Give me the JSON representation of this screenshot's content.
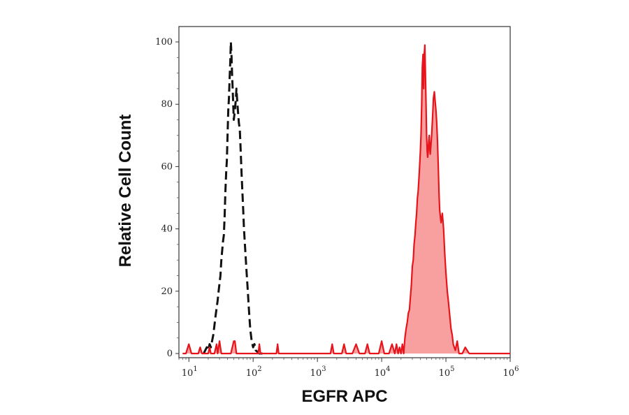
{
  "chart_data": {
    "type": "area",
    "title": "",
    "xlabel": "EGFR APC",
    "ylabel": "Relative Cell Count",
    "x_scale": "log",
    "xlim": [
      7,
      1000000
    ],
    "ylim": [
      0,
      100
    ],
    "grid": false,
    "legend": "none",
    "x_ticks": [
      {
        "base": "10",
        "exp": "1",
        "value": 10
      },
      {
        "base": "10",
        "exp": "2",
        "value": 100
      },
      {
        "base": "10",
        "exp": "3",
        "value": 1000
      },
      {
        "base": "10",
        "exp": "4",
        "value": 10000
      },
      {
        "base": "10",
        "exp": "5",
        "value": 100000
      },
      {
        "base": "10",
        "exp": "6",
        "value": 1000000
      }
    ],
    "y_ticks": [
      {
        "label": "0",
        "value": 0
      },
      {
        "label": "20",
        "value": 20
      },
      {
        "label": "40",
        "value": 40
      },
      {
        "label": "60",
        "value": 60
      },
      {
        "label": "80",
        "value": 80
      },
      {
        "label": "100",
        "value": 100
      }
    ],
    "series": [
      {
        "style": "dashed",
        "color": "#111111",
        "fill": "none",
        "points": [
          [
            17,
            0
          ],
          [
            19,
            2
          ],
          [
            20,
            1
          ],
          [
            21,
            3
          ],
          [
            22,
            2
          ],
          [
            24,
            6
          ],
          [
            25,
            9
          ],
          [
            26,
            12
          ],
          [
            28,
            17
          ],
          [
            29,
            20
          ],
          [
            31,
            25
          ],
          [
            32,
            30
          ],
          [
            34,
            36
          ],
          [
            35,
            38
          ],
          [
            36,
            44
          ],
          [
            37,
            52
          ],
          [
            38,
            58
          ],
          [
            39,
            62
          ],
          [
            40,
            70
          ],
          [
            41,
            78
          ],
          [
            42,
            82
          ],
          [
            43,
            88
          ],
          [
            44,
            93
          ],
          [
            45,
            100
          ],
          [
            46,
            96
          ],
          [
            47,
            90
          ],
          [
            48,
            85
          ],
          [
            49,
            80
          ],
          [
            50,
            75
          ],
          [
            52,
            78
          ],
          [
            54,
            82
          ],
          [
            55,
            85
          ],
          [
            57,
            80
          ],
          [
            59,
            76
          ],
          [
            60,
            74
          ],
          [
            62,
            72
          ],
          [
            64,
            65
          ],
          [
            66,
            58
          ],
          [
            68,
            52
          ],
          [
            70,
            46
          ],
          [
            72,
            40
          ],
          [
            75,
            34
          ],
          [
            78,
            28
          ],
          [
            82,
            21
          ],
          [
            86,
            14
          ],
          [
            90,
            8
          ],
          [
            95,
            4
          ],
          [
            100,
            2
          ],
          [
            105,
            3
          ],
          [
            110,
            1
          ],
          [
            125,
            0
          ],
          [
            150,
            0
          ]
        ]
      },
      {
        "style": "solid",
        "color": "#e8141b",
        "fill": "#f8a0a0",
        "points": [
          [
            8,
            0
          ],
          [
            9,
            0
          ],
          [
            10,
            3
          ],
          [
            11,
            0
          ],
          [
            12,
            0
          ],
          [
            14,
            0
          ],
          [
            15,
            2
          ],
          [
            16,
            0
          ],
          [
            18,
            0
          ],
          [
            20,
            0
          ],
          [
            21,
            2
          ],
          [
            22,
            0
          ],
          [
            25,
            0
          ],
          [
            27,
            3
          ],
          [
            28,
            0
          ],
          [
            30,
            4
          ],
          [
            32,
            0
          ],
          [
            35,
            0
          ],
          [
            40,
            0
          ],
          [
            45,
            0
          ],
          [
            50,
            4
          ],
          [
            52,
            4
          ],
          [
            55,
            0
          ],
          [
            60,
            0
          ],
          [
            80,
            0
          ],
          [
            100,
            0
          ],
          [
            120,
            0
          ],
          [
            125,
            3
          ],
          [
            130,
            0
          ],
          [
            160,
            0
          ],
          [
            200,
            0
          ],
          [
            230,
            0
          ],
          [
            240,
            3
          ],
          [
            250,
            0
          ],
          [
            300,
            0
          ],
          [
            500,
            0
          ],
          [
            800,
            0
          ],
          [
            1200,
            0
          ],
          [
            1600,
            0
          ],
          [
            1700,
            3
          ],
          [
            1800,
            0
          ],
          [
            2400,
            0
          ],
          [
            2600,
            3
          ],
          [
            2800,
            0
          ],
          [
            3500,
            0
          ],
          [
            4000,
            3
          ],
          [
            4500,
            0
          ],
          [
            5500,
            0
          ],
          [
            6000,
            3
          ],
          [
            6500,
            0
          ],
          [
            9000,
            0
          ],
          [
            10000,
            4
          ],
          [
            11000,
            0
          ],
          [
            13000,
            0
          ],
          [
            14500,
            3
          ],
          [
            16000,
            0
          ],
          [
            17000,
            3
          ],
          [
            18000,
            0
          ],
          [
            19000,
            2
          ],
          [
            20000,
            0
          ],
          [
            21000,
            3
          ],
          [
            22000,
            0
          ],
          [
            23000,
            5
          ],
          [
            24000,
            8
          ],
          [
            25000,
            10
          ],
          [
            26000,
            13
          ],
          [
            27000,
            14
          ],
          [
            28000,
            18
          ],
          [
            29000,
            22
          ],
          [
            30000,
            28
          ],
          [
            31000,
            30
          ],
          [
            32000,
            35
          ],
          [
            33000,
            38
          ],
          [
            34000,
            42
          ],
          [
            35000,
            45
          ],
          [
            36000,
            50
          ],
          [
            37000,
            52
          ],
          [
            38000,
            56
          ],
          [
            39000,
            60
          ],
          [
            40000,
            65
          ],
          [
            41000,
            70
          ],
          [
            42000,
            80
          ],
          [
            43000,
            92
          ],
          [
            44000,
            96
          ],
          [
            45000,
            85
          ],
          [
            46000,
            96
          ],
          [
            47000,
            99
          ],
          [
            48000,
            90
          ],
          [
            49000,
            80
          ],
          [
            50000,
            70
          ],
          [
            51000,
            65
          ],
          [
            52000,
            63
          ],
          [
            53000,
            65
          ],
          [
            54000,
            68
          ],
          [
            55000,
            70
          ],
          [
            56000,
            66
          ],
          [
            57000,
            64
          ],
          [
            58000,
            66
          ],
          [
            60000,
            70
          ],
          [
            62000,
            76
          ],
          [
            64000,
            82
          ],
          [
            66000,
            84
          ],
          [
            68000,
            81
          ],
          [
            70000,
            78
          ],
          [
            72000,
            74
          ],
          [
            74000,
            68
          ],
          [
            76000,
            60
          ],
          [
            78000,
            52
          ],
          [
            80000,
            46
          ],
          [
            84000,
            42
          ],
          [
            88000,
            45
          ],
          [
            92000,
            40
          ],
          [
            96000,
            32
          ],
          [
            100000,
            26
          ],
          [
            105000,
            20
          ],
          [
            110000,
            16
          ],
          [
            115000,
            12
          ],
          [
            120000,
            8
          ],
          [
            125000,
            6
          ],
          [
            130000,
            3
          ],
          [
            140000,
            1
          ],
          [
            150000,
            4
          ],
          [
            160000,
            0
          ],
          [
            180000,
            0
          ],
          [
            200000,
            2
          ],
          [
            230000,
            0
          ],
          [
            300000,
            0
          ],
          [
            1000000,
            0
          ]
        ]
      }
    ]
  }
}
